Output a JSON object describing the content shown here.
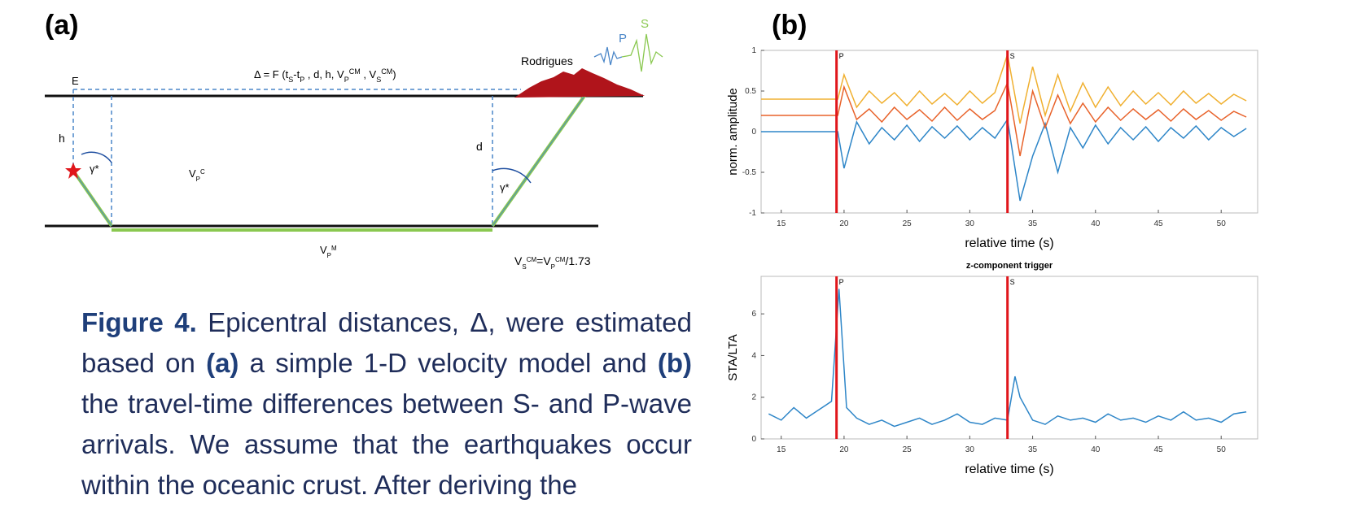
{
  "panel_a": {
    "label": "(a)",
    "formula": [
      "Δ = F (t",
      "S",
      "-t",
      "P",
      " , d, h, V",
      "P",
      "CM",
      " , V",
      "S",
      "CM",
      ")"
    ],
    "point_label": "E",
    "depth_label": "h",
    "thickness_label": "d",
    "angle_left": "γ*",
    "angle_right": "γ*",
    "island": "Rodrigues",
    "wave_p": "P",
    "wave_s": "S",
    "crust_velocity": [
      "V",
      "P",
      "C"
    ],
    "mantle_velocity": [
      "V",
      "P",
      "M"
    ],
    "relation": [
      "V",
      "S",
      "CM",
      "=V",
      "P",
      "CM",
      "/1.73"
    ]
  },
  "panel_b": {
    "label": "(b)",
    "charts": [
      {
        "type": "line",
        "ylabel": "norm. amplitude",
        "xlabel": "relative time  (s)",
        "x": [
          13.4,
          19.5,
          20,
          21,
          22,
          23,
          24,
          25,
          26,
          27,
          28,
          29,
          30,
          31,
          32,
          33,
          34,
          35,
          36,
          37,
          38,
          39,
          40,
          41,
          42,
          43,
          44,
          45,
          46,
          47,
          48,
          49,
          50,
          51,
          52
        ],
        "series": [
          {
            "color": "#2e86c8",
            "values": [
              0,
              0,
              -0.45,
              0.12,
              -0.15,
              0.05,
              -0.1,
              0.08,
              -0.12,
              0.06,
              -0.08,
              0.07,
              -0.1,
              0.05,
              -0.08,
              0.15,
              -0.85,
              -0.3,
              0.1,
              -0.5,
              0.05,
              -0.2,
              0.08,
              -0.15,
              0.05,
              -0.1,
              0.06,
              -0.12,
              0.05,
              -0.08,
              0.07,
              -0.1,
              0.05,
              -0.06,
              0.04
            ]
          },
          {
            "color": "#e8622a",
            "values": [
              0.2,
              0.2,
              0.55,
              0.15,
              0.28,
              0.12,
              0.3,
              0.15,
              0.27,
              0.13,
              0.3,
              0.14,
              0.28,
              0.15,
              0.26,
              0.6,
              -0.3,
              0.5,
              0.05,
              0.45,
              0.1,
              0.35,
              0.12,
              0.3,
              0.14,
              0.28,
              0.15,
              0.27,
              0.13,
              0.28,
              0.15,
              0.26,
              0.14,
              0.25,
              0.18
            ]
          },
          {
            "color": "#f0b030",
            "values": [
              0.4,
              0.4,
              0.7,
              0.3,
              0.5,
              0.35,
              0.48,
              0.32,
              0.5,
              0.34,
              0.47,
              0.33,
              0.5,
              0.35,
              0.48,
              0.95,
              0.1,
              0.8,
              0.2,
              0.7,
              0.25,
              0.6,
              0.3,
              0.55,
              0.32,
              0.5,
              0.34,
              0.48,
              0.33,
              0.5,
              0.35,
              0.47,
              0.34,
              0.46,
              0.38
            ]
          }
        ],
        "xlim": [
          13.4,
          52.9
        ],
        "xticks": [
          15,
          20,
          25,
          30,
          35,
          40,
          45,
          50
        ],
        "ylim": [
          -1,
          1
        ],
        "yticks": [
          -1,
          -0.5,
          0,
          0.5,
          1
        ],
        "picks": [
          {
            "x": 19.4,
            "label": "P"
          },
          {
            "x": 33,
            "label": "S"
          }
        ],
        "pick_color": "#e0161b"
      },
      {
        "type": "line",
        "title": "z-component trigger",
        "ylabel": "STA/LTA",
        "xlabel": "relative time  (s)",
        "x": [
          14,
          15,
          16,
          17,
          18,
          19,
          19.6,
          20.2,
          21,
          22,
          23,
          24,
          25,
          26,
          27,
          28,
          29,
          30,
          31,
          32,
          33,
          33.6,
          34,
          35,
          36,
          37,
          38,
          39,
          40,
          41,
          42,
          43,
          44,
          45,
          46,
          47,
          48,
          49,
          50,
          51,
          52
        ],
        "series": [
          {
            "color": "#2e86c8",
            "values": [
              1.2,
              0.9,
              1.5,
              1.0,
              1.4,
              1.8,
              7.2,
              1.5,
              1.0,
              0.7,
              0.9,
              0.6,
              0.8,
              1.0,
              0.7,
              0.9,
              1.2,
              0.8,
              0.7,
              1.0,
              0.9,
              3.0,
              2.0,
              0.9,
              0.7,
              1.1,
              0.9,
              1.0,
              0.8,
              1.2,
              0.9,
              1.0,
              0.8,
              1.1,
              0.9,
              1.3,
              0.9,
              1.0,
              0.8,
              1.2,
              1.3
            ]
          }
        ],
        "xlim": [
          13.4,
          52.9
        ],
        "xticks": [
          15,
          20,
          25,
          30,
          35,
          40,
          45,
          50
        ],
        "ylim": [
          0,
          7.8
        ],
        "yticks": [
          0,
          2,
          4,
          6
        ],
        "picks": [
          {
            "x": 19.4,
            "label": "P"
          },
          {
            "x": 33,
            "label": "S"
          }
        ],
        "pick_color": "#e0161b"
      }
    ]
  },
  "caption": [
    "Figure 4.",
    " Epicentral distances, Δ, were estimated based on ",
    "(a)",
    " a simple 1-D velocity model and ",
    "(b)",
    " the travel-time differences between S- and P-wave arrivals. We assume that the earthquakes occur within the oceanic crust. After deriving the"
  ]
}
